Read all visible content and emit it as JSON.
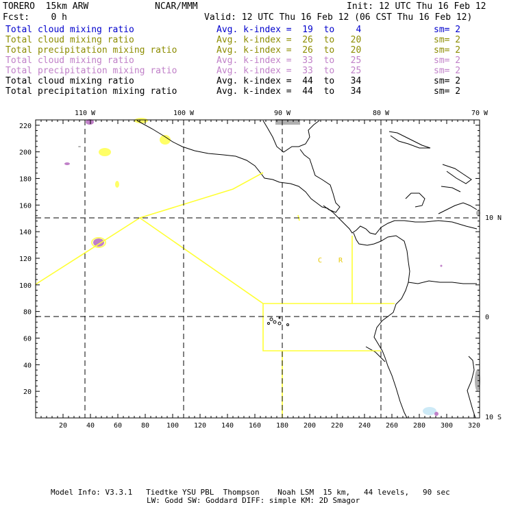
{
  "header": {
    "model": "TORERO  15km ARW",
    "org": "NCAR/MMM",
    "init": "Init: 12 UTC Thu 16 Feb 12",
    "fcst": "Fcst:    0 h",
    "valid": "Valid: 12 UTC Thu 16 Feb 12 (06 CST Thu 16 Feb 12)"
  },
  "legend": [
    {
      "field": "Total cloud mixing ratio",
      "index": "Avg. k-index =  19  to    4",
      "sm": "sm= 2",
      "color": "#0000cc"
    },
    {
      "field": "Total cloud mixing ratio",
      "index": "Avg. k-index =  26  to   20",
      "sm": "sm= 2",
      "color": "#8c8c00"
    },
    {
      "field": "Total precipitation mixing ratio",
      "index": "Avg. k-index =  26  to   20",
      "sm": "sm= 2",
      "color": "#8c8c00"
    },
    {
      "field": "Total cloud mixing ratio",
      "index": "Avg. k-index =  33  to   25",
      "sm": "sm= 2",
      "color": "#c080c8"
    },
    {
      "field": "Total precipitation mixing ratio",
      "index": "Avg. k-index =  33  to   25",
      "sm": "sm= 2",
      "color": "#c080c8"
    },
    {
      "field": "Total cloud mixing ratio",
      "index": "Avg. k-index =  44  to   34",
      "sm": "sm= 2",
      "color": "#000000"
    },
    {
      "field": "Total precipitation mixing ratio",
      "index": "Avg. k-index =  44  to   34",
      "sm": "sm= 2",
      "color": "#000000"
    }
  ],
  "map": {
    "lon_labels": [
      "110 W",
      "100 W",
      "90 W",
      "80 W",
      "70 W"
    ],
    "lat_labels": [
      "10 N",
      "0",
      "10 S"
    ],
    "x_ticks": [
      "20",
      "40",
      "60",
      "80",
      "100",
      "120",
      "140",
      "160",
      "180",
      "200",
      "220",
      "240",
      "260",
      "280",
      "300",
      "320"
    ],
    "y_ticks": [
      "20",
      "40",
      "60",
      "80",
      "100",
      "120",
      "140",
      "160",
      "180",
      "200",
      "220"
    ],
    "station_labels": [
      "C",
      "R"
    ],
    "colors": {
      "flight_track": "#ffff33",
      "grid": "#000000",
      "coast": "#000000"
    }
  },
  "footer": {
    "line1": "Model Info: V3.3.1   Tiedtke YSU PBL  Thompson    Noah LSM  15 km,   44 levels,   90 sec",
    "line2": "LW: Godd SW: Goddard DIFF: simple KM: 2D Smagor"
  }
}
